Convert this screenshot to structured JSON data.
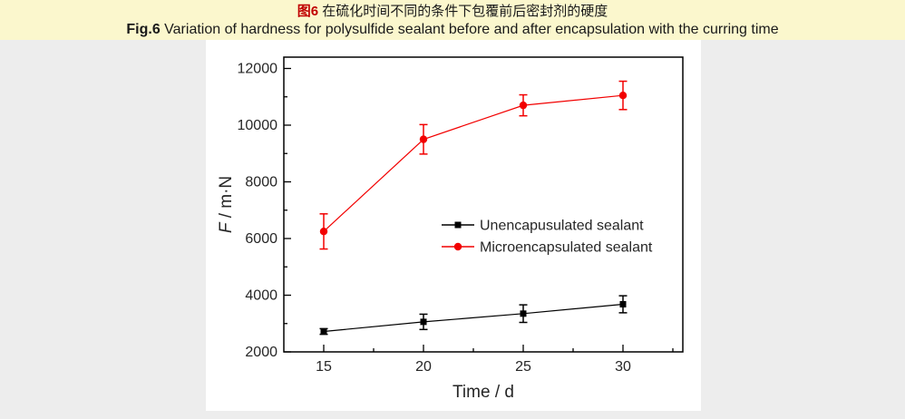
{
  "page": {
    "title_cn": {
      "prefix": "图6",
      "text": "在硫化时间不同的条件下包覆前后密封剂的硬度"
    },
    "title_en": {
      "prefix": "Fig.6",
      "text": "Variation of hardness for polysulfide sealant before and after encapsulation with the curring time"
    }
  },
  "colors": {
    "page_background": "#fbf7cd",
    "surround_background": "#ededed",
    "plot_background": "#ffffff",
    "caption_prefix_red": "#c00000",
    "axis_black": "#000000",
    "text_dark": "#262626",
    "series_black": "#000000",
    "series_red": "#f20000"
  },
  "chart_data": {
    "type": "line",
    "x": [
      15,
      20,
      25,
      30
    ],
    "series": [
      {
        "name": "Unencapusulated sealant",
        "color": "#000000",
        "marker": "square",
        "values": [
          2720,
          3060,
          3350,
          3680
        ],
        "errors": [
          100,
          270,
          310,
          300
        ]
      },
      {
        "name": "Microencapsulated sealant",
        "color": "#f20000",
        "marker": "circle",
        "values": [
          6250,
          9500,
          10700,
          11050
        ],
        "errors": [
          620,
          520,
          370,
          500
        ]
      }
    ],
    "xlabel": "Time / d",
    "ylabel": "F / m·N",
    "ylabel_parts": [
      {
        "text": "F",
        "italic": true
      },
      {
        "text": " / m·N",
        "italic": false
      }
    ],
    "xlim": [
      13,
      33
    ],
    "ylim": [
      2000,
      12400
    ],
    "x_major_ticks": [
      15,
      20,
      25,
      30
    ],
    "x_minor_ticks": [
      17.5,
      22.5,
      27.5,
      32.5
    ],
    "y_major_ticks": [
      2000,
      4000,
      6000,
      8000,
      10000,
      12000
    ],
    "y_minor_ticks": [
      3000,
      5000,
      7000,
      9000,
      11000
    ],
    "grid": false,
    "legend_position": "inside-center-right",
    "ticks_direction": "in"
  }
}
